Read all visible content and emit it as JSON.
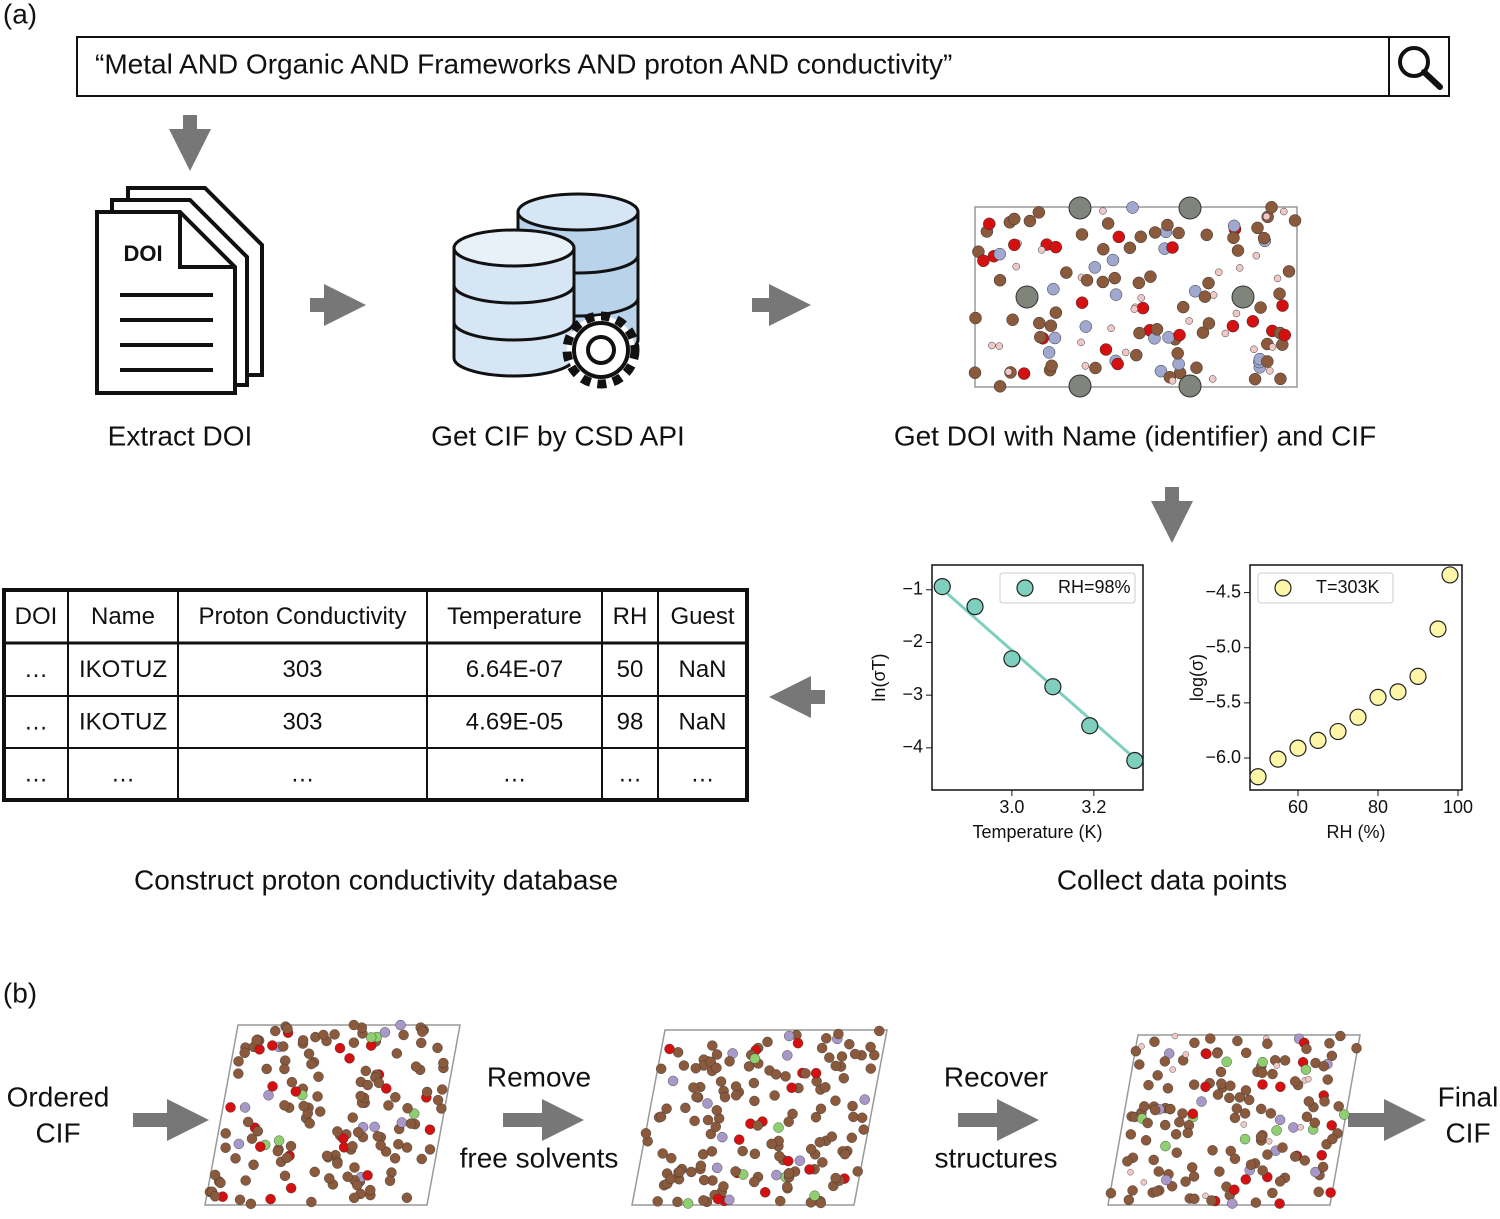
{
  "panel_labels": [
    "(a)",
    "(b)"
  ],
  "search": {
    "query": "“Metal AND Organic AND Frameworks AND proton AND conductivity”"
  },
  "doc_icon_label": "DOI",
  "steps": [
    "Extract DOI",
    "Get CIF by CSD API",
    "Get DOI with Name (identifier) and CIF",
    "Collect data points",
    "Construct proton conductivity database"
  ],
  "table": {
    "headers": [
      "DOI",
      "Name",
      "Proton Conductivity",
      "Temperature",
      "RH",
      "Guest"
    ],
    "rows": [
      [
        "…",
        "IKOTUZ",
        "303",
        "6.64E-07",
        "50",
        "NaN"
      ],
      [
        "…",
        "IKOTUZ",
        "303",
        "4.69E-05",
        "98",
        "NaN"
      ],
      [
        "…",
        "…",
        "…",
        "…",
        "…",
        "…"
      ]
    ]
  },
  "workflow_b": {
    "start": [
      "Ordered",
      "CIF"
    ],
    "step1": [
      "Remove",
      "free solvents"
    ],
    "step2": [
      "Recover",
      "structures"
    ],
    "end": [
      "Final",
      "CIF"
    ]
  },
  "chart_data": [
    {
      "type": "scatter",
      "xlabel": "Temperature (K)",
      "ylabel": "ln(σT)",
      "x": [
        2.83,
        2.91,
        3.0,
        3.1,
        3.19,
        3.3
      ],
      "series": [
        {
          "name": "RH=98%",
          "color": "#7fcfbf",
          "values": [
            -0.94,
            -1.32,
            -2.31,
            -2.84,
            -3.58,
            -4.24
          ]
        }
      ],
      "fit_line": {
        "color": "#7fcfbf",
        "x": [
          2.82,
          3.31
        ],
        "values": [
          -0.92,
          -4.27
        ]
      },
      "xlim": [
        2.805,
        3.32
      ],
      "xticks": [
        {
          "value": 3,
          "label": "3.0"
        },
        {
          "value": 3.2,
          "label": "3.2"
        }
      ],
      "ylim": [
        -4.8,
        -0.53
      ],
      "yticks": [
        {
          "value": -1,
          "label": "−1"
        },
        {
          "value": -2,
          "label": "−2"
        },
        {
          "value": -3,
          "label": "−3"
        },
        {
          "value": -4,
          "label": "−4"
        }
      ],
      "legend": "upper right"
    },
    {
      "type": "scatter",
      "xlabel": "RH (%)",
      "ylabel": "log(σ)",
      "x": [
        50,
        55,
        60,
        65,
        70,
        75,
        80,
        85,
        90,
        95,
        98
      ],
      "series": [
        {
          "name": "T=303K",
          "color": "#fdf5a8",
          "values": [
            -6.17,
            -6.01,
            -5.91,
            -5.84,
            -5.76,
            -5.63,
            -5.45,
            -5.4,
            -5.26,
            -4.83,
            -4.34
          ]
        }
      ],
      "xlim": [
        48,
        101
      ],
      "xticks": [
        60,
        80,
        100
      ],
      "ylim": [
        -6.29,
        -4.25
      ],
      "yticks": [
        {
          "value": -4.5,
          "label": "−4.5"
        },
        {
          "value": -5,
          "label": "−5.0"
        },
        {
          "value": -5.5,
          "label": "−5.5"
        },
        {
          "value": -6,
          "label": "−6.0"
        }
      ],
      "legend": "upper left"
    }
  ]
}
